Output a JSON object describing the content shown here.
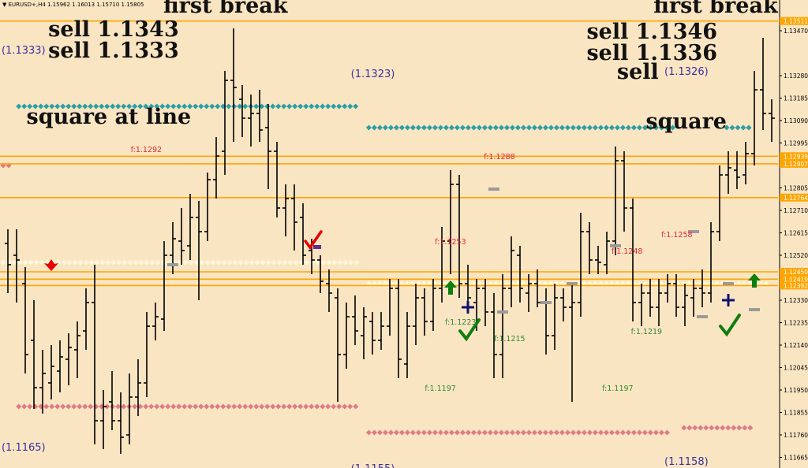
{
  "window": {
    "title": "▼ EURUSD+,H4  1.15962 1.16013 1.15710 1.15805"
  },
  "colors": {
    "background": "#fae5c3",
    "bar": "#000000",
    "level_line": "#ffa500",
    "teal_marker": "#2a9fa5",
    "red_marker": "#e07b86",
    "cream_marker": "#fff7d6",
    "fib_red": "#e2262f",
    "fib_green": "#2e8b2e",
    "pivot_label": "#3b2fa0",
    "arrow_green": "#0e7e0e",
    "arrow_red": "#e60000",
    "cross_navy": "#101070",
    "grey_tick": "#9a9a9a"
  },
  "chart_data": {
    "type": "ohlc",
    "symbol": "EURUSD+",
    "timeframe": "H4",
    "header_ohlc": {
      "open": 1.15962,
      "high": 1.16013,
      "low": 1.1571,
      "close": 1.15805
    },
    "ylim": [
      1.1162,
      1.136
    ],
    "y_ticks": [
      "1.13470",
      "1.13280",
      "1.13185",
      "1.13090",
      "1.12995",
      "1.12805",
      "1.12710",
      "1.12615",
      "1.12520",
      "1.12330",
      "1.12235",
      "1.12140",
      "1.12045",
      "1.11950",
      "1.11855",
      "1.11760",
      "1.11665"
    ],
    "level_tags": [
      "1.13511",
      "1.12939",
      "1.12907",
      "1.12764",
      "1.12450",
      "1.12419",
      "1.12392"
    ],
    "bars": [
      {
        "o": 1.1257,
        "h": 1.1263,
        "l": 1.1236,
        "c": 1.1248
      },
      {
        "o": 1.1252,
        "h": 1.1263,
        "l": 1.1232,
        "c": 1.125
      },
      {
        "o": 1.124,
        "h": 1.1247,
        "l": 1.1202,
        "c": 1.121
      },
      {
        "o": 1.1216,
        "h": 1.1233,
        "l": 1.1187,
        "c": 1.1196
      },
      {
        "o": 1.1196,
        "h": 1.1212,
        "l": 1.1185,
        "c": 1.1202
      },
      {
        "o": 1.1198,
        "h": 1.1214,
        "l": 1.1191,
        "c": 1.1205
      },
      {
        "o": 1.1203,
        "h": 1.1216,
        "l": 1.1194,
        "c": 1.1209
      },
      {
        "o": 1.1208,
        "h": 1.1219,
        "l": 1.1197,
        "c": 1.1213
      },
      {
        "o": 1.1212,
        "h": 1.1224,
        "l": 1.12,
        "c": 1.1218
      },
      {
        "o": 1.122,
        "h": 1.1238,
        "l": 1.1212,
        "c": 1.1232
      },
      {
        "o": 1.1232,
        "h": 1.1248,
        "l": 1.1172,
        "c": 1.1182
      },
      {
        "o": 1.1182,
        "h": 1.1195,
        "l": 1.117,
        "c": 1.1188
      },
      {
        "o": 1.119,
        "h": 1.1203,
        "l": 1.1178,
        "c": 1.1182
      },
      {
        "o": 1.1182,
        "h": 1.1194,
        "l": 1.1168,
        "c": 1.1175
      },
      {
        "o": 1.1176,
        "h": 1.1202,
        "l": 1.1172,
        "c": 1.1192
      },
      {
        "o": 1.1192,
        "h": 1.1208,
        "l": 1.1184,
        "c": 1.1198
      },
      {
        "o": 1.1198,
        "h": 1.1228,
        "l": 1.1192,
        "c": 1.1222
      },
      {
        "o": 1.1222,
        "h": 1.1232,
        "l": 1.1216,
        "c": 1.1226
      },
      {
        "o": 1.1225,
        "h": 1.1258,
        "l": 1.122,
        "c": 1.1252
      },
      {
        "o": 1.1252,
        "h": 1.1266,
        "l": 1.1244,
        "c": 1.1259
      },
      {
        "o": 1.1258,
        "h": 1.1272,
        "l": 1.1248,
        "c": 1.1254
      },
      {
        "o": 1.1256,
        "h": 1.1278,
        "l": 1.125,
        "c": 1.1268
      },
      {
        "o": 1.1268,
        "h": 1.1275,
        "l": 1.1233,
        "c": 1.1262
      },
      {
        "o": 1.1262,
        "h": 1.1287,
        "l": 1.1258,
        "c": 1.1284
      },
      {
        "o": 1.1284,
        "h": 1.1302,
        "l": 1.1276,
        "c": 1.1294
      },
      {
        "o": 1.1296,
        "h": 1.133,
        "l": 1.1286,
        "c": 1.1326
      },
      {
        "o": 1.1326,
        "h": 1.1348,
        "l": 1.13,
        "c": 1.1323
      },
      {
        "o": 1.1318,
        "h": 1.1324,
        "l": 1.1302,
        "c": 1.131
      },
      {
        "o": 1.131,
        "h": 1.132,
        "l": 1.1298,
        "c": 1.1312
      },
      {
        "o": 1.1312,
        "h": 1.1322,
        "l": 1.13,
        "c": 1.1305
      },
      {
        "o": 1.1306,
        "h": 1.1316,
        "l": 1.128,
        "c": 1.1296
      },
      {
        "o": 1.1296,
        "h": 1.13,
        "l": 1.1268,
        "c": 1.1272
      },
      {
        "o": 1.1272,
        "h": 1.1282,
        "l": 1.126,
        "c": 1.1276
      },
      {
        "o": 1.1276,
        "h": 1.1282,
        "l": 1.1254,
        "c": 1.1266
      },
      {
        "o": 1.1268,
        "h": 1.1274,
        "l": 1.1248,
        "c": 1.1252
      },
      {
        "o": 1.1254,
        "h": 1.1259,
        "l": 1.1244,
        "c": 1.125
      },
      {
        "o": 1.125,
        "h": 1.1252,
        "l": 1.1236,
        "c": 1.1241
      },
      {
        "o": 1.124,
        "h": 1.1246,
        "l": 1.1228,
        "c": 1.1236
      },
      {
        "o": 1.1234,
        "h": 1.1238,
        "l": 1.119,
        "c": 1.121
      },
      {
        "o": 1.121,
        "h": 1.1232,
        "l": 1.1204,
        "c": 1.1226
      },
      {
        "o": 1.1226,
        "h": 1.1235,
        "l": 1.1214,
        "c": 1.122
      },
      {
        "o": 1.1218,
        "h": 1.123,
        "l": 1.1208,
        "c": 1.1226
      },
      {
        "o": 1.1224,
        "h": 1.1228,
        "l": 1.121,
        "c": 1.1216
      },
      {
        "o": 1.1216,
        "h": 1.1228,
        "l": 1.1212,
        "c": 1.1222
      },
      {
        "o": 1.1222,
        "h": 1.1242,
        "l": 1.1218,
        "c": 1.1238
      },
      {
        "o": 1.1238,
        "h": 1.1242,
        "l": 1.12,
        "c": 1.1208
      },
      {
        "o": 1.1206,
        "h": 1.1228,
        "l": 1.12,
        "c": 1.1222
      },
      {
        "o": 1.1222,
        "h": 1.124,
        "l": 1.1214,
        "c": 1.1234
      },
      {
        "o": 1.1234,
        "h": 1.1238,
        "l": 1.1218,
        "c": 1.1224
      },
      {
        "o": 1.1224,
        "h": 1.1242,
        "l": 1.122,
        "c": 1.1238
      },
      {
        "o": 1.1238,
        "h": 1.1264,
        "l": 1.1232,
        "c": 1.1258
      },
      {
        "o": 1.1258,
        "h": 1.1288,
        "l": 1.1244,
        "c": 1.1282
      },
      {
        "o": 1.1282,
        "h": 1.1286,
        "l": 1.1234,
        "c": 1.124
      },
      {
        "o": 1.124,
        "h": 1.1248,
        "l": 1.1228,
        "c": 1.1234
      },
      {
        "o": 1.1232,
        "h": 1.1242,
        "l": 1.122,
        "c": 1.1238
      },
      {
        "o": 1.1238,
        "h": 1.1242,
        "l": 1.1222,
        "c": 1.1228
      },
      {
        "o": 1.1228,
        "h": 1.1236,
        "l": 1.12,
        "c": 1.121
      },
      {
        "o": 1.121,
        "h": 1.1244,
        "l": 1.12,
        "c": 1.1238
      },
      {
        "o": 1.1238,
        "h": 1.126,
        "l": 1.123,
        "c": 1.1254
      },
      {
        "o": 1.1252,
        "h": 1.1256,
        "l": 1.1232,
        "c": 1.1238
      },
      {
        "o": 1.1236,
        "h": 1.1244,
        "l": 1.1228,
        "c": 1.124
      },
      {
        "o": 1.124,
        "h": 1.1246,
        "l": 1.123,
        "c": 1.1232
      },
      {
        "o": 1.1232,
        "h": 1.1238,
        "l": 1.121,
        "c": 1.1218
      },
      {
        "o": 1.1218,
        "h": 1.124,
        "l": 1.1212,
        "c": 1.1234
      },
      {
        "o": 1.1234,
        "h": 1.1238,
        "l": 1.1224,
        "c": 1.123
      },
      {
        "o": 1.123,
        "h": 1.124,
        "l": 1.119,
        "c": 1.1232
      },
      {
        "o": 1.1232,
        "h": 1.127,
        "l": 1.1226,
        "c": 1.1262
      },
      {
        "o": 1.1262,
        "h": 1.1266,
        "l": 1.1244,
        "c": 1.125
      },
      {
        "o": 1.125,
        "h": 1.1256,
        "l": 1.1244,
        "c": 1.1249
      },
      {
        "o": 1.1248,
        "h": 1.1262,
        "l": 1.1244,
        "c": 1.1258
      },
      {
        "o": 1.1258,
        "h": 1.1298,
        "l": 1.1252,
        "c": 1.1292
      },
      {
        "o": 1.1292,
        "h": 1.1296,
        "l": 1.1262,
        "c": 1.1272
      },
      {
        "o": 1.1272,
        "h": 1.1276,
        "l": 1.1224,
        "c": 1.1232
      },
      {
        "o": 1.1232,
        "h": 1.124,
        "l": 1.1222,
        "c": 1.1236
      },
      {
        "o": 1.1236,
        "h": 1.1242,
        "l": 1.1226,
        "c": 1.123
      },
      {
        "o": 1.123,
        "h": 1.1242,
        "l": 1.1222,
        "c": 1.1236
      },
      {
        "o": 1.1236,
        "h": 1.1244,
        "l": 1.1232,
        "c": 1.124
      },
      {
        "o": 1.124,
        "h": 1.1244,
        "l": 1.1226,
        "c": 1.123
      },
      {
        "o": 1.123,
        "h": 1.124,
        "l": 1.1222,
        "c": 1.1235
      },
      {
        "o": 1.1234,
        "h": 1.1242,
        "l": 1.1226,
        "c": 1.1238
      },
      {
        "o": 1.1238,
        "h": 1.1246,
        "l": 1.123,
        "c": 1.1236
      },
      {
        "o": 1.1236,
        "h": 1.1266,
        "l": 1.1232,
        "c": 1.1262
      },
      {
        "o": 1.1262,
        "h": 1.129,
        "l": 1.1258,
        "c": 1.1286
      },
      {
        "o": 1.1286,
        "h": 1.1296,
        "l": 1.1278,
        "c": 1.1289
      },
      {
        "o": 1.1288,
        "h": 1.1296,
        "l": 1.128,
        "c": 1.1285
      },
      {
        "o": 1.1286,
        "h": 1.13,
        "l": 1.1282,
        "c": 1.1295
      },
      {
        "o": 1.1295,
        "h": 1.133,
        "l": 1.129,
        "c": 1.1322
      },
      {
        "o": 1.1322,
        "h": 1.1344,
        "l": 1.1305,
        "c": 1.1312
      },
      {
        "o": 1.1312,
        "h": 1.1318,
        "l": 1.13,
        "c": 1.131
      }
    ],
    "level_lines": [
      1.13511,
      1.12939,
      1.12907,
      1.12764,
      1.1245,
      1.12419,
      1.12392
    ],
    "marker_rows": [
      {
        "kind": "teal",
        "price": 1.1315,
        "x0": 0.02,
        "x1": 0.46
      },
      {
        "kind": "teal",
        "price": 1.1306,
        "x0": 0.47,
        "x1": 0.87
      },
      {
        "kind": "teal",
        "price": 1.1306,
        "x0": 0.93,
        "x1": 0.965
      },
      {
        "kind": "red",
        "price": 1.1188,
        "x0": 0.02,
        "x1": 0.46
      },
      {
        "kind": "red",
        "price": 1.1177,
        "x0": 0.47,
        "x1": 0.86
      },
      {
        "kind": "red",
        "price": 1.1179,
        "x0": 0.875,
        "x1": 0.965
      },
      {
        "kind": "red",
        "price": 1.129,
        "x0": 0.0,
        "x1": 0.012
      },
      {
        "kind": "cream",
        "price": 1.1249,
        "x0": 0.0,
        "x1": 0.46
      },
      {
        "kind": "cream",
        "price": 1.124,
        "x0": 0.47,
        "x1": 0.99
      }
    ],
    "big_labels": [
      {
        "text": "first break",
        "price": 1.1358,
        "x": 0.21
      },
      {
        "text": "sell 1.1343",
        "price": 1.1348,
        "x": 0.062
      },
      {
        "text": "sell 1.1333",
        "price": 1.1339,
        "x": 0.062
      },
      {
        "text": "square at line",
        "price": 1.1311,
        "x": 0.034
      },
      {
        "text": "first break",
        "price": 1.1358,
        "x": 0.84
      },
      {
        "text": "sell 1.1346",
        "price": 1.1347,
        "x": 0.754
      },
      {
        "text": "sell 1.1336",
        "price": 1.1338,
        "x": 0.754
      },
      {
        "text": "sell",
        "price": 1.133,
        "x": 0.793
      },
      {
        "text": "square",
        "price": 1.1309,
        "x": 0.83
      }
    ],
    "pivot_labels": [
      {
        "text": "(1.1333)",
        "price": 1.1339,
        "x": 0.002
      },
      {
        "text": "(1.1323)",
        "price": 1.1329,
        "x": 0.451
      },
      {
        "text": "(1.1326)",
        "price": 1.133,
        "x": 0.854
      },
      {
        "text": "(1.1165)",
        "price": 1.1171,
        "x": 0.002
      },
      {
        "text": "(1.1155)",
        "price": 1.1162,
        "x": 0.451
      },
      {
        "text": "(1.1158)",
        "price": 1.1165,
        "x": 0.854
      }
    ],
    "fib_labels": [
      {
        "text": "f:1.1292",
        "price": 1.1297,
        "x": 0.168,
        "color": "red"
      },
      {
        "text": "f:1.1288",
        "price": 1.1294,
        "x": 0.622,
        "color": "red"
      },
      {
        "text": "f:1.1253",
        "price": 1.1258,
        "x": 0.559,
        "color": "red"
      },
      {
        "text": "f:1.1248",
        "price": 1.1254,
        "x": 0.786,
        "color": "red"
      },
      {
        "text": "f:1.1258",
        "price": 1.1261,
        "x": 0.85,
        "color": "red"
      },
      {
        "text": "f:1.1223",
        "price": 1.1224,
        "x": 0.572,
        "color": "green"
      },
      {
        "text": "f:1.1215",
        "price": 1.1217,
        "x": 0.635,
        "color": "green"
      },
      {
        "text": "f:1.1219",
        "price": 1.122,
        "x": 0.811,
        "color": "green"
      },
      {
        "text": "f:1.1197",
        "price": 1.1196,
        "x": 0.546,
        "color": "green"
      },
      {
        "text": "f:1.1197",
        "price": 1.1196,
        "x": 0.774,
        "color": "green"
      }
    ],
    "signals": [
      {
        "kind": "arrow-up",
        "price": 1.1238,
        "bar": 51
      },
      {
        "kind": "arrow-up",
        "price": 1.1241,
        "bar": 86
      },
      {
        "kind": "arrow-down",
        "price": 1.1248,
        "bar": 5
      },
      {
        "kind": "checkmark-green",
        "price": 1.1222,
        "bar": 53
      },
      {
        "kind": "checkmark-green",
        "price": 1.1224,
        "bar": 83
      },
      {
        "kind": "checkmark-red",
        "price": 1.1256,
        "bar": 35
      },
      {
        "kind": "cross-navy",
        "price": 1.123,
        "bar": 53
      },
      {
        "kind": "cross-navy",
        "price": 1.1233,
        "bar": 83
      },
      {
        "kind": "grey-tick",
        "price": 1.128,
        "bar": 56
      },
      {
        "kind": "grey-tick",
        "price": 1.1262,
        "bar": 79
      },
      {
        "kind": "grey-tick",
        "price": 1.1248,
        "bar": 19
      },
      {
        "kind": "grey-tick",
        "price": 1.1232,
        "bar": 62
      },
      {
        "kind": "grey-tick",
        "price": 1.124,
        "bar": 65
      },
      {
        "kind": "grey-tick",
        "price": 1.1228,
        "bar": 57
      },
      {
        "kind": "grey-tick",
        "price": 1.1256,
        "bar": 70
      },
      {
        "kind": "grey-tick",
        "price": 1.1226,
        "bar": 80
      },
      {
        "kind": "grey-tick",
        "price": 1.1229,
        "bar": 86
      },
      {
        "kind": "grey-tick",
        "price": 1.124,
        "bar": 83
      }
    ]
  }
}
